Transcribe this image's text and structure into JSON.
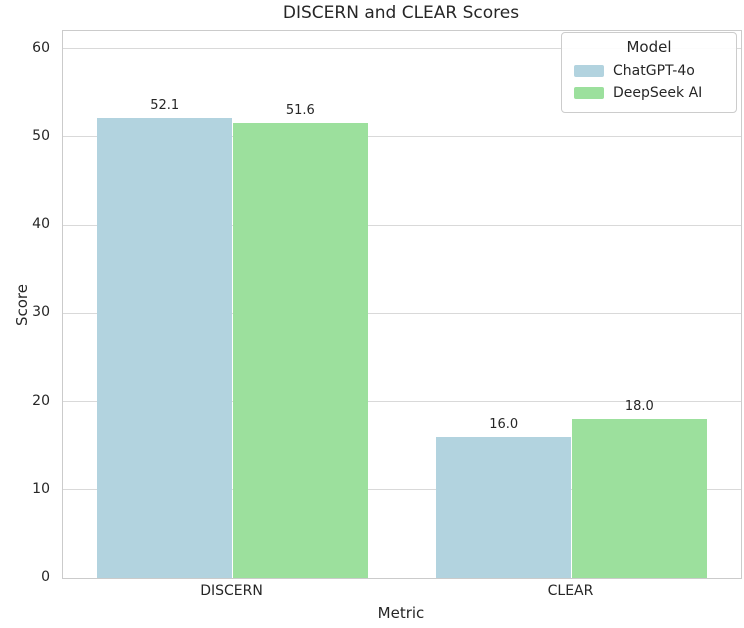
{
  "chart_data": {
    "type": "bar",
    "title": "DISCERN and CLEAR Scores",
    "xlabel": "Metric",
    "ylabel": "Score",
    "categories": [
      "DISCERN",
      "CLEAR"
    ],
    "series": [
      {
        "name": "ChatGPT-4o",
        "color": "#b2d3df",
        "values": [
          52.1,
          16.0
        ],
        "labels": [
          "52.1",
          "16.0"
        ]
      },
      {
        "name": "DeepSeek AI",
        "color": "#9ce09d",
        "values": [
          51.6,
          18.0
        ],
        "labels": [
          "51.6",
          "18.0"
        ]
      }
    ],
    "ylim": [
      0,
      62
    ],
    "yticks": [
      0,
      10,
      20,
      30,
      40,
      50,
      60
    ],
    "grid": "horizontal",
    "legend": {
      "title": "Model",
      "position": "upper right"
    }
  },
  "colors": {
    "background": "#ffffff",
    "text": "#262626",
    "gridline": "#d9d9d9",
    "spine": "#cbcbcb",
    "series_blue": "#b2d3df",
    "series_green": "#9ce09d"
  }
}
